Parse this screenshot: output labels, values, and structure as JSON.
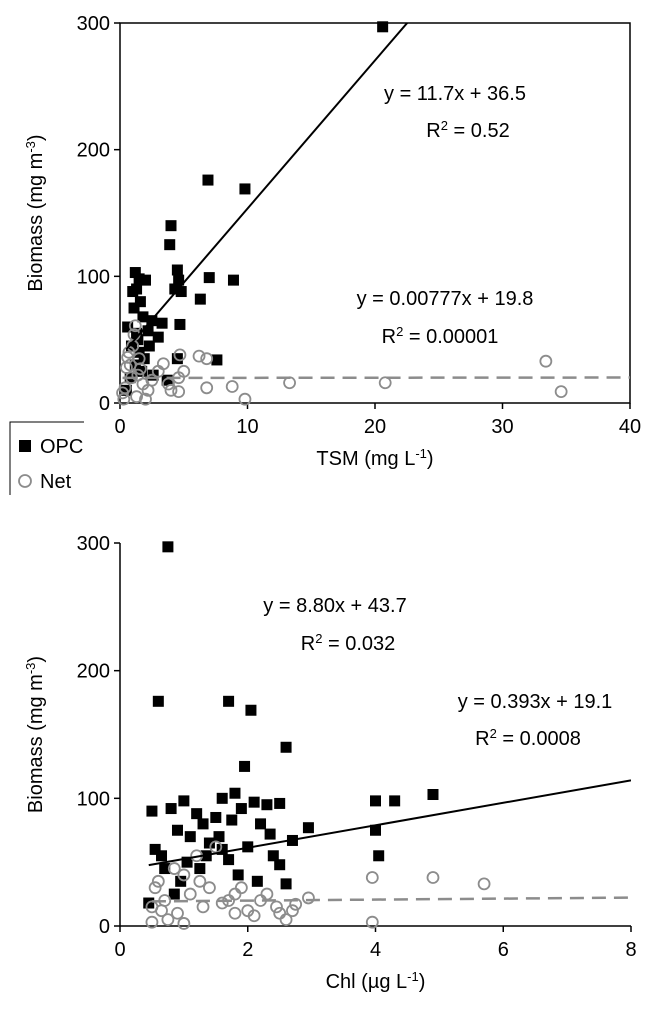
{
  "chart_data": [
    {
      "type": "scatter",
      "x_label": [
        "TSM (mg L",
        "-1",
        ")"
      ],
      "y_label": [
        "Biomass (mg m",
        "-3",
        ")"
      ],
      "xlim": [
        0,
        40
      ],
      "xticks": [
        0,
        10,
        20,
        30,
        40
      ],
      "ylim": [
        0,
        300
      ],
      "yticks": [
        0,
        100,
        200,
        300
      ],
      "frame": "box",
      "legend": "outside-lower-left",
      "series": [
        {
          "name": "OPC",
          "color": "#000000",
          "marker": "filled-square",
          "x": [
            20.6,
            6.9,
            9.8,
            4,
            3.9,
            1.2,
            4.5,
            4.6,
            7,
            8.9,
            4.8,
            6.3,
            1.5,
            2,
            1.3,
            1,
            1.6,
            1.1,
            1.8,
            2.5,
            3.3,
            4.7,
            1.3,
            3,
            7.6,
            4.5,
            2.3,
            1.5,
            1.2,
            0.8,
            2.6,
            0.5,
            1.9,
            1.4,
            4.3,
            2.2,
            0.9,
            1.7,
            3.7,
            0.6
          ],
          "values": [
            297,
            176,
            169,
            140,
            125,
            103,
            105,
            97,
            99,
            97,
            88,
            82,
            98,
            97,
            90,
            88,
            80,
            75,
            68,
            65,
            63,
            62,
            55,
            52,
            34,
            35,
            45,
            40,
            30,
            20,
            22,
            10,
            35,
            50,
            90,
            57,
            45,
            25,
            18,
            60
          ],
          "trendline": {
            "equation": "y = 11.7x + 36.5",
            "r_squared": [
              "R",
              "2",
              " = 0.52"
            ],
            "slope": 11.7,
            "intercept": 36.5,
            "color": "#000000",
            "dashed": false
          }
        },
        {
          "name": "Net",
          "color": "#8c8c8c",
          "marker": "open-circle",
          "x": [
            34.6,
            33.4,
            20.8,
            13.3,
            9.8,
            8.8,
            6.8,
            6.2,
            6.8,
            4.7,
            4.6,
            4.6,
            3.4,
            2.2,
            1.2,
            1.1,
            1,
            0.7,
            1.5,
            0.5,
            0.9,
            0.4,
            0.3,
            1.8,
            2.5,
            3,
            0.8,
            1.3,
            4,
            2,
            1.6,
            0.6,
            3.8,
            5,
            0.2,
            1.4
          ],
          "values": [
            9,
            33,
            16,
            16,
            3,
            13,
            35,
            37,
            12,
            38,
            9,
            20,
            31,
            10,
            61,
            54,
            45,
            40,
            35,
            28,
            20,
            12,
            3,
            15,
            18,
            25,
            30,
            5,
            10,
            3,
            27,
            36,
            15,
            25,
            8,
            22
          ],
          "trendline": {
            "equation": "y = 0.00777x + 19.8",
            "r_squared": [
              "R",
              "2",
              " = 0.00001"
            ],
            "slope": 0.00777,
            "intercept": 19.8,
            "color": "#8c8c8c",
            "dashed": true
          }
        }
      ]
    },
    {
      "type": "scatter",
      "x_label": [
        "Chl (µg L",
        "-1",
        ")"
      ],
      "y_label": [
        "Biomass (mg m",
        "-3",
        ")"
      ],
      "xlim": [
        0,
        8
      ],
      "xticks": [
        0,
        2,
        4,
        6,
        8
      ],
      "ylim": [
        0,
        300
      ],
      "yticks": [
        0,
        100,
        200,
        300
      ],
      "frame": "axes",
      "series": [
        {
          "name": "OPC",
          "color": "#000000",
          "marker": "filled-square",
          "x": [
            0.75,
            0.6,
            1.7,
            2.05,
            2.6,
            1.95,
            1.8,
            1.6,
            1,
            2.1,
            2.3,
            2.5,
            4.9,
            4.3,
            4,
            4,
            4.05,
            0.5,
            0.8,
            1.2,
            1.5,
            1.3,
            1.75,
            2.2,
            2.95,
            2.7,
            0.9,
            1.1,
            1.4,
            2,
            2.4,
            1.6,
            0.55,
            0.7,
            1.05,
            1.85,
            2.15,
            2.6,
            0.45,
            0.85,
            1.25,
            1.7,
            2.5,
            0.95,
            1.55,
            1.9,
            2.35,
            1.35,
            0.65
          ],
          "values": [
            297,
            176,
            176,
            169,
            140,
            125,
            104,
            100,
            98,
            97,
            95,
            96,
            103,
            98,
            98,
            75,
            55,
            90,
            92,
            88,
            85,
            80,
            83,
            80,
            77,
            67,
            75,
            70,
            65,
            62,
            55,
            60,
            60,
            45,
            50,
            40,
            35,
            33,
            18,
            25,
            45,
            52,
            48,
            35,
            70,
            92,
            72,
            55,
            55
          ],
          "trendline": {
            "equation": "y = 8.80x + 43.7",
            "r_squared": [
              "R",
              "2",
              " = 0.032"
            ],
            "slope": 8.8,
            "intercept": 43.7,
            "color": "#000000",
            "dashed": false
          }
        },
        {
          "name": "Net",
          "color": "#8c8c8c",
          "marker": "open-circle",
          "x": [
            5.7,
            4.9,
            3.95,
            3.95,
            2.95,
            2.75,
            2.5,
            2.6,
            2.2,
            2,
            1.8,
            1.5,
            1.2,
            1,
            0.85,
            0.6,
            0.55,
            0.5,
            1,
            1.3,
            1.7,
            1.9,
            2.1,
            0.7,
            0.9,
            1.4,
            1.6,
            2.3,
            2.45,
            0.5,
            0.75,
            1.1,
            1.8,
            2.7,
            1.25,
            0.65
          ],
          "values": [
            33,
            38,
            38,
            3,
            22,
            17,
            10,
            5,
            20,
            12,
            25,
            62,
            55,
            40,
            45,
            35,
            30,
            3,
            2,
            15,
            20,
            30,
            8,
            20,
            10,
            30,
            18,
            25,
            15,
            15,
            5,
            25,
            10,
            12,
            35,
            12
          ],
          "trendline": {
            "equation": "y = 0.393x + 19.1",
            "r_squared": [
              "R",
              "2",
              " = 0.0008"
            ],
            "slope": 0.393,
            "intercept": 19.1,
            "color": "#8c8c8c",
            "dashed": true
          }
        }
      ]
    }
  ]
}
